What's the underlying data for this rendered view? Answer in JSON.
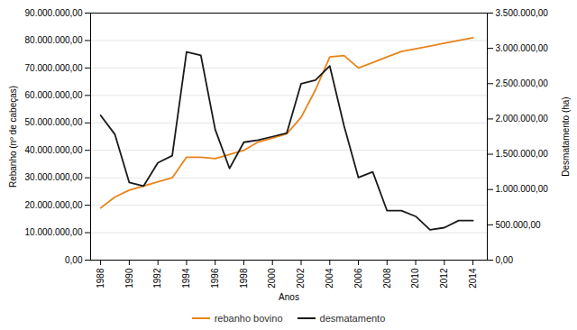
{
  "chart_data": {
    "type": "line",
    "xlabel": "Anos",
    "ylabel": "Rebanho (nº de cabeças)",
    "y2label": "Desmatamento (ha)",
    "x": [
      1988,
      1989,
      1990,
      1991,
      1992,
      1993,
      1994,
      1995,
      1996,
      1997,
      1998,
      1999,
      2000,
      2001,
      2002,
      2003,
      2004,
      2005,
      2006,
      2007,
      2008,
      2009,
      2010,
      2011,
      2012,
      2013,
      2014
    ],
    "xlim": [
      1987.3,
      2015.0
    ],
    "xticks": [
      1988,
      1990,
      1992,
      1994,
      1996,
      1998,
      2000,
      2002,
      2004,
      2006,
      2008,
      2010,
      2012,
      2014
    ],
    "ylim": [
      0,
      90000000
    ],
    "yticks": [
      {
        "value": 0,
        "label": "0,00"
      },
      {
        "value": 10000000,
        "label": "10.000.000,00"
      },
      {
        "value": 20000000,
        "label": "20.000.000,00"
      },
      {
        "value": 30000000,
        "label": "30.000.000,00"
      },
      {
        "value": 40000000,
        "label": "40.000.000,00"
      },
      {
        "value": 50000000,
        "label": "50.000.000,00"
      },
      {
        "value": 60000000,
        "label": "60.000.000,00"
      },
      {
        "value": 70000000,
        "label": "70.000.000,00"
      },
      {
        "value": 80000000,
        "label": "80.000.000,00"
      },
      {
        "value": 90000000,
        "label": "90.000.000,00"
      }
    ],
    "y2lim": [
      0,
      3500000
    ],
    "y2ticks": [
      {
        "value": 0,
        "label": "0,00"
      },
      {
        "value": 500000,
        "label": "500.000,00"
      },
      {
        "value": 1000000,
        "label": "1.000.000,00"
      },
      {
        "value": 1500000,
        "label": "1.500.000,00"
      },
      {
        "value": 2000000,
        "label": "2.000.000,00"
      },
      {
        "value": 2500000,
        "label": "2.500.000,00"
      },
      {
        "value": 3000000,
        "label": "3.000.000,00"
      },
      {
        "value": 3500000,
        "label": "3.500.000,00"
      }
    ],
    "grid": true,
    "legend": "bottom",
    "series": [
      {
        "name": "rebanho bovino",
        "color": "#E8841A",
        "values": [
          19000000,
          23000000,
          25500000,
          27000000,
          28500000,
          30000000,
          37500000,
          37500000,
          37000000,
          38500000,
          40000000,
          43000000,
          44500000,
          46000000,
          52000000,
          62000000,
          74000000,
          74500000,
          70000000,
          72000000,
          74000000,
          76000000,
          77000000,
          78000000,
          79000000,
          80000000,
          81000000
        ]
      },
      {
        "name": "desmatamento",
        "color": "#1a1a1a",
        "axis": "y2",
        "values": [
          2050000,
          1780000,
          1100000,
          1050000,
          1380000,
          1480000,
          2950000,
          2900000,
          1850000,
          1300000,
          1670000,
          1700000,
          1750000,
          1800000,
          2500000,
          2550000,
          2750000,
          1900000,
          1170000,
          1250000,
          700000,
          700000,
          620000,
          430000,
          460000,
          560000,
          560000
        ]
      }
    ]
  }
}
